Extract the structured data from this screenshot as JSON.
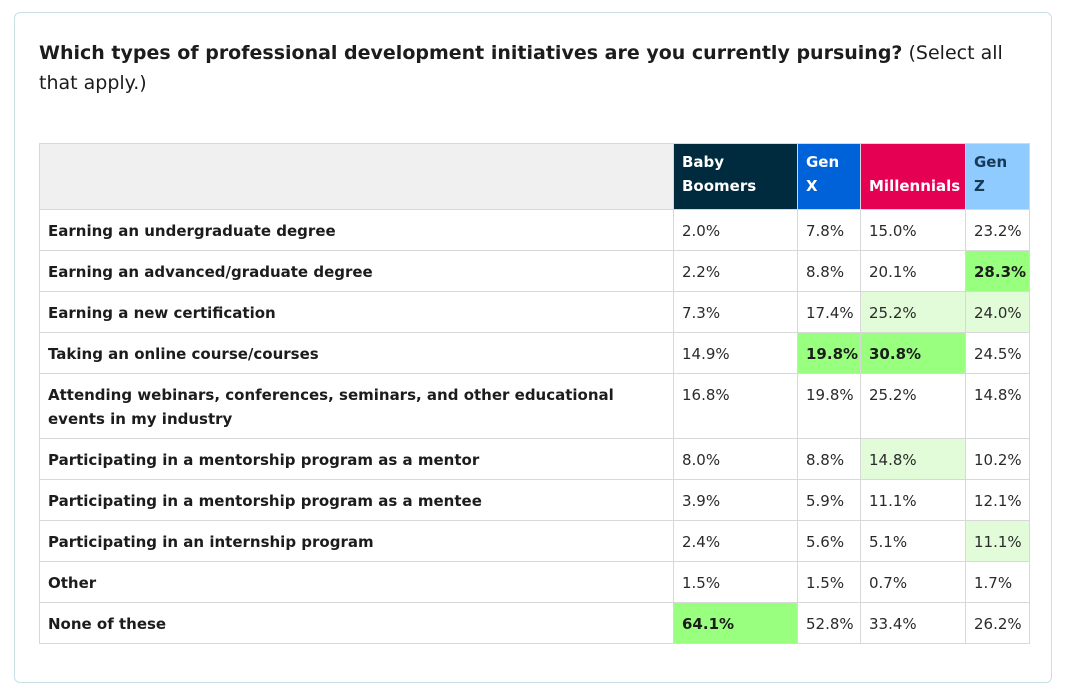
{
  "question": {
    "bold": "Which types of professional development initiatives are you currently pursuing?",
    "note": "(Select all that apply.)"
  },
  "colors": {
    "baby_boomers": "#002a3e",
    "gen_x": "#0062d9",
    "millennials": "#e60054",
    "gen_z": "#8fcbff",
    "highlight_strong": "#99ff7f",
    "highlight_light": "#e2fbd8"
  },
  "chart_data": {
    "type": "table",
    "title": "Which types of professional development initiatives are you currently pursuing? (Select all that apply.)",
    "columns": [
      "Baby Boomers",
      "Gen X",
      "Millennials",
      "Gen Z"
    ],
    "rows": [
      {
        "label": "Earning an undergraduate degree",
        "values": [
          "2.0%",
          "7.8%",
          "15.0%",
          "23.2%"
        ],
        "highlight": [
          "",
          "",
          "",
          ""
        ]
      },
      {
        "label": "Earning an advanced/graduate degree",
        "values": [
          "2.2%",
          "8.8%",
          "20.1%",
          "28.3%"
        ],
        "highlight": [
          "",
          "",
          "",
          "strong"
        ]
      },
      {
        "label": "Earning a new certification",
        "values": [
          "7.3%",
          "17.4%",
          "25.2%",
          "24.0%"
        ],
        "highlight": [
          "",
          "",
          "light",
          "light"
        ]
      },
      {
        "label": "Taking an online course/courses",
        "values": [
          "14.9%",
          "19.8%",
          "30.8%",
          "24.5%"
        ],
        "highlight": [
          "",
          "strong",
          "strong",
          ""
        ]
      },
      {
        "label": "Attending webinars, conferences, seminars, and other educational events in my industry",
        "values": [
          "16.8%",
          "19.8%",
          "25.2%",
          "14.8%"
        ],
        "highlight": [
          "",
          "",
          "",
          ""
        ]
      },
      {
        "label": "Participating in a mentorship program as a mentor",
        "values": [
          "8.0%",
          "8.8%",
          "14.8%",
          "10.2%"
        ],
        "highlight": [
          "",
          "",
          "light",
          ""
        ]
      },
      {
        "label": "Participating in a mentorship program as a mentee",
        "values": [
          "3.9%",
          "5.9%",
          "11.1%",
          "12.1%"
        ],
        "highlight": [
          "",
          "",
          "",
          ""
        ]
      },
      {
        "label": "Participating in an internship program",
        "values": [
          "2.4%",
          "5.6%",
          "5.1%",
          "11.1%"
        ],
        "highlight": [
          "",
          "",
          "",
          "light"
        ]
      },
      {
        "label": "Other",
        "values": [
          "1.5%",
          "1.5%",
          "0.7%",
          "1.7%"
        ],
        "highlight": [
          "",
          "",
          "",
          ""
        ]
      },
      {
        "label": "None of these",
        "values": [
          "64.1%",
          "52.8%",
          "33.4%",
          "26.2%"
        ],
        "highlight": [
          "strong",
          "",
          "",
          ""
        ]
      }
    ]
  }
}
